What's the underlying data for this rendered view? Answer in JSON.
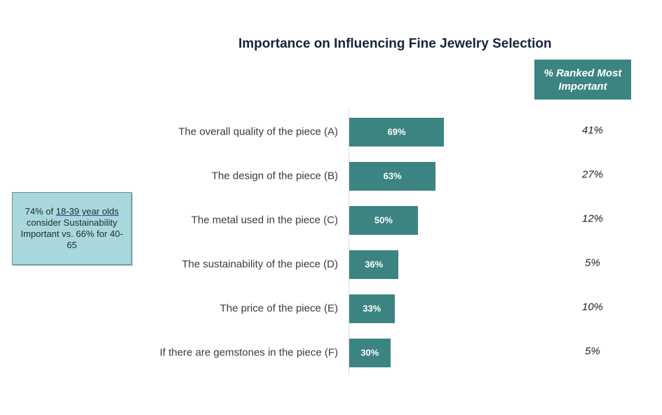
{
  "chart_data": {
    "type": "bar",
    "orientation": "horizontal",
    "title": "Importance on Influencing Fine Jewelry Selection",
    "categories": [
      "The overall quality of the piece (A)",
      "The design of the piece (B)",
      "The metal used in the piece (C)",
      "The sustainability of the piece (D)",
      "The price of the piece (E)",
      "If there are gemstones in the piece (F)"
    ],
    "values": [
      69,
      63,
      50,
      36,
      33,
      30
    ],
    "data_labels": [
      "69%",
      "63%",
      "50%",
      "36%",
      "33%",
      "30%"
    ],
    "xlim": [
      0,
      100
    ],
    "grid": false,
    "bar_color": "#3c8482",
    "ranked_column": {
      "header": "% Ranked Most Important",
      "values": [
        "41%",
        "27%",
        "12%",
        "5%",
        "10%",
        "5%"
      ]
    }
  },
  "callout": {
    "text_before": "74% of ",
    "underlined": "18-39 year olds",
    "text_after": " consider Sustainability Important vs. 66% for 40-65"
  }
}
